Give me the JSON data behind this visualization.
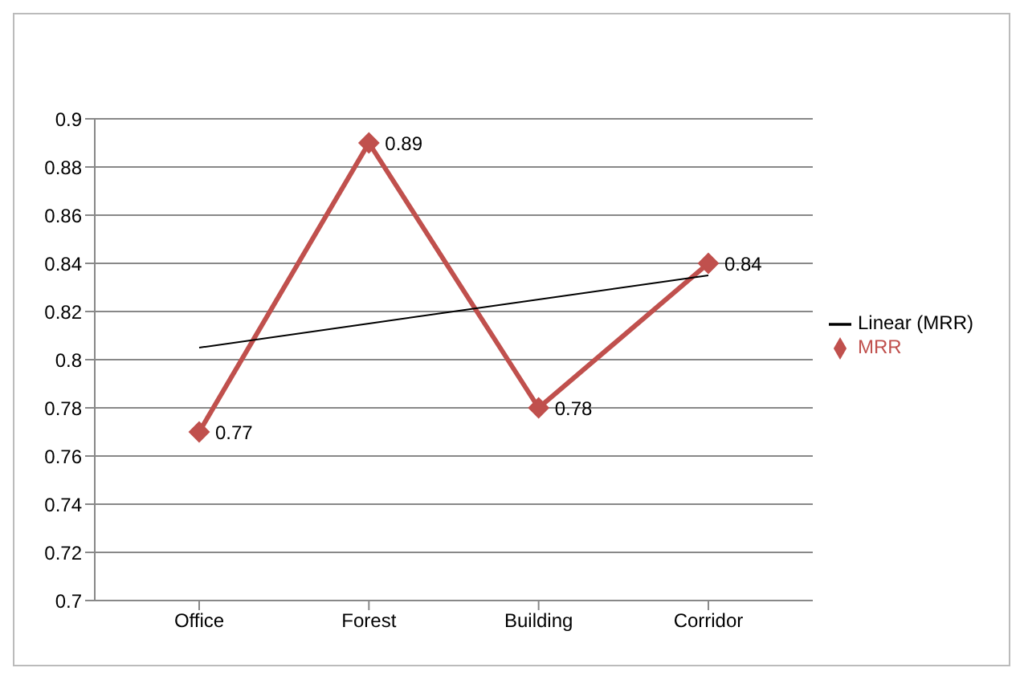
{
  "chart_data": {
    "type": "line",
    "categories": [
      "Office",
      "Forest",
      "Building",
      "Corridor"
    ],
    "series": [
      {
        "name": "MRR",
        "color": "#c0504d",
        "values": [
          0.77,
          0.89,
          0.78,
          0.84
        ],
        "marker": "diamond",
        "data_labels": true
      },
      {
        "name": "Linear (MRR)",
        "color": "#000000",
        "values": [
          0.805,
          0.815,
          0.825,
          0.835
        ],
        "marker": "none"
      }
    ],
    "ylim": [
      0.7,
      0.9
    ],
    "yticks": [
      0.7,
      0.72,
      0.74,
      0.76,
      0.78,
      0.8,
      0.82,
      0.84,
      0.86,
      0.88,
      0.9
    ],
    "grid": "y",
    "legend": "right"
  }
}
